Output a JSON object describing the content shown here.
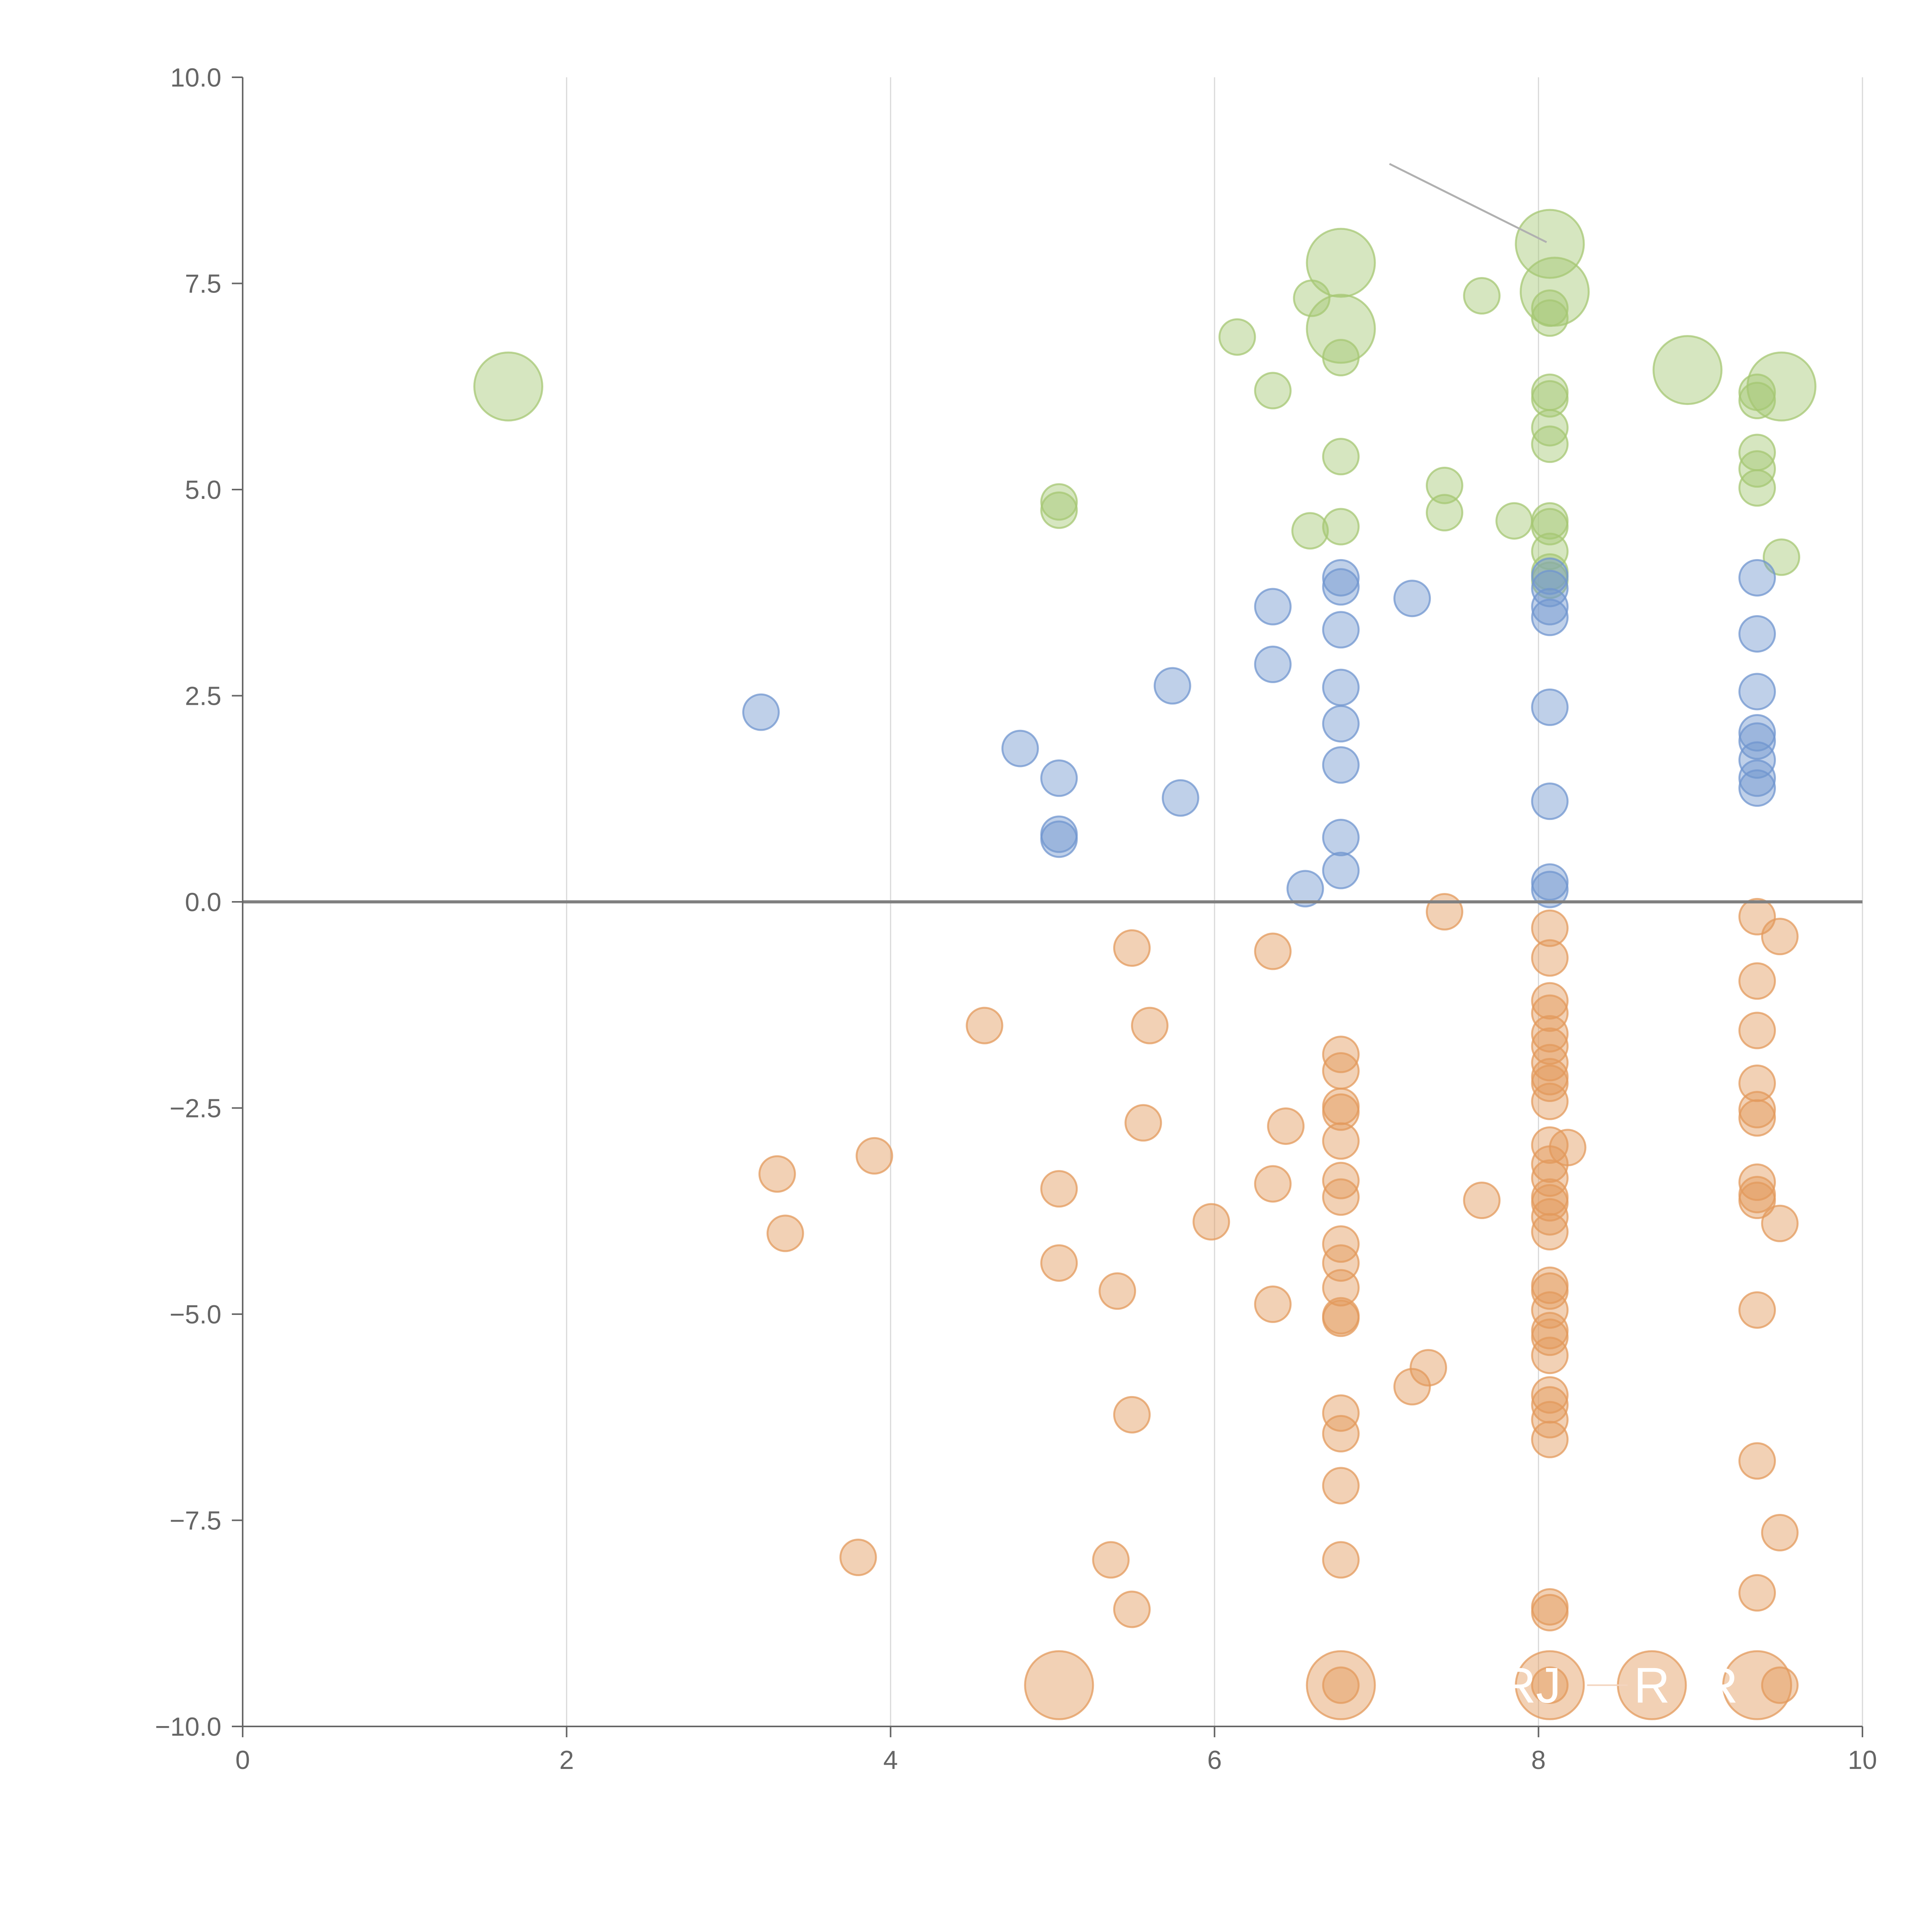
{
  "chart_data": {
    "type": "scatter",
    "title": "",
    "xlabel": "",
    "ylabel": "",
    "xlim": [
      0,
      10
    ],
    "ylim": [
      -10,
      10
    ],
    "grid": true,
    "x_ticks": [
      0,
      2,
      4,
      6,
      8,
      10
    ],
    "x_tick_labels": [
      "0",
      "2",
      "4",
      "6",
      "8",
      "10"
    ],
    "y_ticks": [
      -10,
      -7.5,
      -5,
      -2.5,
      0,
      2.5,
      5,
      7.5,
      10
    ],
    "y_tick_labels": [
      "−10.0",
      "−7.5",
      "−5.0",
      "−2.5",
      "0.0",
      "2.5",
      "5.0",
      "7.5",
      "10.0"
    ],
    "colors": {
      "green": "#a5c773",
      "blue": "#7096cf",
      "orange": "#e39a5c",
      "axis": "#666666",
      "grid": "#d9d9d9",
      "zero_line": "#808080",
      "annotation": "#ffffff",
      "leader": "#b0b0b0"
    },
    "series": [
      {
        "name": "green",
        "color": "#a5c773",
        "points": [
          [
            1.64,
            6.25,
            2
          ],
          [
            5.04,
            4.85,
            1
          ],
          [
            5.04,
            4.75,
            1
          ],
          [
            6.14,
            6.85,
            1
          ],
          [
            6.36,
            6.2,
            1
          ],
          [
            6.6,
            7.32,
            1
          ],
          [
            6.59,
            4.5,
            1
          ],
          [
            6.78,
            7.75,
            2
          ],
          [
            6.78,
            6.95,
            2
          ],
          [
            6.78,
            6.6,
            1
          ],
          [
            6.78,
            5.4,
            1
          ],
          [
            6.78,
            4.55,
            1
          ],
          [
            7.42,
            5.05,
            1
          ],
          [
            7.42,
            4.72,
            1
          ],
          [
            7.65,
            7.35,
            1
          ],
          [
            7.85,
            4.62,
            1
          ],
          [
            8.07,
            7.98,
            2
          ],
          [
            8.1,
            7.4,
            2
          ],
          [
            8.07,
            7.2,
            1
          ],
          [
            8.07,
            7.08,
            1
          ],
          [
            8.07,
            6.18,
            1
          ],
          [
            8.07,
            6.1,
            1
          ],
          [
            8.07,
            5.75,
            1
          ],
          [
            8.07,
            5.55,
            1
          ],
          [
            8.07,
            4.62,
            1
          ],
          [
            8.07,
            4.55,
            1
          ],
          [
            8.07,
            4.25,
            1
          ],
          [
            8.07,
            4.0,
            1
          ],
          [
            8.07,
            3.9,
            1
          ],
          [
            8.92,
            6.45,
            2
          ],
          [
            9.35,
            6.18,
            1
          ],
          [
            9.35,
            6.08,
            1
          ],
          [
            9.35,
            5.45,
            1
          ],
          [
            9.35,
            5.25,
            1
          ],
          [
            9.35,
            5.02,
            1
          ],
          [
            9.5,
            6.25,
            2
          ],
          [
            9.5,
            4.18,
            1
          ]
        ]
      },
      {
        "name": "blue",
        "color": "#7096cf",
        "points": [
          [
            3.2,
            2.3,
            1
          ],
          [
            4.8,
            1.86,
            1
          ],
          [
            5.04,
            1.5,
            1
          ],
          [
            5.04,
            0.82,
            1
          ],
          [
            5.04,
            0.76,
            1
          ],
          [
            5.74,
            2.62,
            1
          ],
          [
            5.79,
            1.26,
            1
          ],
          [
            6.36,
            3.58,
            1
          ],
          [
            6.36,
            2.88,
            1
          ],
          [
            6.56,
            0.16,
            1
          ],
          [
            6.78,
            3.93,
            1
          ],
          [
            6.78,
            3.82,
            1
          ],
          [
            6.78,
            3.3,
            1
          ],
          [
            6.78,
            2.6,
            1
          ],
          [
            6.78,
            2.16,
            1
          ],
          [
            6.78,
            1.66,
            1
          ],
          [
            6.78,
            0.78,
            1
          ],
          [
            6.78,
            0.38,
            1
          ],
          [
            7.22,
            3.68,
            1
          ],
          [
            8.07,
            3.95,
            1
          ],
          [
            8.07,
            3.8,
            1
          ],
          [
            8.07,
            3.58,
            1
          ],
          [
            8.07,
            3.45,
            1
          ],
          [
            8.07,
            2.36,
            1
          ],
          [
            8.07,
            1.22,
            1
          ],
          [
            8.07,
            0.24,
            1
          ],
          [
            8.07,
            0.15,
            1
          ],
          [
            9.35,
            3.93,
            1
          ],
          [
            9.35,
            3.25,
            1
          ],
          [
            9.35,
            2.55,
            1
          ],
          [
            9.35,
            2.05,
            1
          ],
          [
            9.35,
            1.95,
            1
          ],
          [
            9.35,
            1.72,
            1
          ],
          [
            9.35,
            1.5,
            1
          ],
          [
            9.35,
            1.38,
            1
          ]
        ]
      },
      {
        "name": "orange",
        "color": "#e39a5c",
        "points": [
          [
            3.3,
            -3.3,
            1
          ],
          [
            3.35,
            -4.02,
            1
          ],
          [
            3.8,
            -7.95,
            1
          ],
          [
            3.9,
            -3.08,
            1
          ],
          [
            4.58,
            -1.5,
            1
          ],
          [
            5.04,
            -3.48,
            1
          ],
          [
            5.04,
            -4.38,
            1
          ],
          [
            5.04,
            -9.5,
            2
          ],
          [
            5.36,
            -7.98,
            1
          ],
          [
            5.4,
            -4.72,
            1
          ],
          [
            5.49,
            -0.56,
            1
          ],
          [
            5.49,
            -6.22,
            1
          ],
          [
            5.49,
            -8.58,
            1
          ],
          [
            5.56,
            -2.68,
            1
          ],
          [
            5.6,
            -1.5,
            1
          ],
          [
            5.98,
            -3.88,
            1
          ],
          [
            6.36,
            -0.6,
            1
          ],
          [
            6.36,
            -3.42,
            1
          ],
          [
            6.36,
            -4.88,
            1
          ],
          [
            6.44,
            -2.72,
            1
          ],
          [
            6.78,
            -1.85,
            1
          ],
          [
            6.78,
            -2.05,
            1
          ],
          [
            6.78,
            -2.48,
            1
          ],
          [
            6.78,
            -2.55,
            1
          ],
          [
            6.78,
            -2.9,
            1
          ],
          [
            6.78,
            -3.38,
            1
          ],
          [
            6.78,
            -3.58,
            1
          ],
          [
            6.78,
            -4.15,
            1
          ],
          [
            6.78,
            -4.38,
            1
          ],
          [
            6.78,
            -4.68,
            1
          ],
          [
            6.78,
            -5.02,
            1
          ],
          [
            6.78,
            -5.05,
            1
          ],
          [
            6.78,
            -6.2,
            1
          ],
          [
            6.78,
            -6.45,
            1
          ],
          [
            6.78,
            -7.08,
            1
          ],
          [
            6.78,
            -7.98,
            1
          ],
          [
            6.78,
            -9.5,
            2
          ],
          [
            6.78,
            -9.5,
            1
          ],
          [
            7.22,
            -5.88,
            1
          ],
          [
            7.32,
            -5.65,
            1
          ],
          [
            7.42,
            -0.12,
            1
          ],
          [
            7.65,
            -3.62,
            1
          ],
          [
            8.07,
            -0.32,
            1
          ],
          [
            8.07,
            -0.68,
            1
          ],
          [
            8.07,
            -1.2,
            1
          ],
          [
            8.07,
            -1.35,
            1
          ],
          [
            8.07,
            -1.6,
            1
          ],
          [
            8.07,
            -1.75,
            1
          ],
          [
            8.07,
            -1.95,
            1
          ],
          [
            8.07,
            -2.12,
            1
          ],
          [
            8.07,
            -2.2,
            1
          ],
          [
            8.07,
            -2.42,
            1
          ],
          [
            8.07,
            -2.95,
            1
          ],
          [
            8.07,
            -3.18,
            1
          ],
          [
            8.07,
            -3.35,
            1
          ],
          [
            8.07,
            -3.58,
            1
          ],
          [
            8.07,
            -3.65,
            1
          ],
          [
            8.07,
            -3.82,
            1
          ],
          [
            8.07,
            -4.0,
            1
          ],
          [
            8.07,
            -4.65,
            1
          ],
          [
            8.07,
            -4.72,
            1
          ],
          [
            8.07,
            -4.95,
            1
          ],
          [
            8.07,
            -5.2,
            1
          ],
          [
            8.07,
            -5.28,
            1
          ],
          [
            8.07,
            -5.5,
            1
          ],
          [
            8.07,
            -5.98,
            1
          ],
          [
            8.07,
            -6.1,
            1
          ],
          [
            8.07,
            -6.28,
            1
          ],
          [
            8.07,
            -6.52,
            1
          ],
          [
            8.07,
            -8.55,
            1
          ],
          [
            8.07,
            -8.62,
            1
          ],
          [
            8.07,
            -9.5,
            2
          ],
          [
            8.07,
            -9.5,
            1
          ],
          [
            8.18,
            -2.98,
            1
          ],
          [
            8.7,
            -9.5,
            2
          ],
          [
            9.35,
            -0.18,
            1
          ],
          [
            9.35,
            -0.96,
            1
          ],
          [
            9.35,
            -1.56,
            1
          ],
          [
            9.35,
            -2.2,
            1
          ],
          [
            9.35,
            -2.52,
            1
          ],
          [
            9.35,
            -2.62,
            1
          ],
          [
            9.35,
            -3.4,
            1
          ],
          [
            9.35,
            -3.55,
            1
          ],
          [
            9.35,
            -3.62,
            1
          ],
          [
            9.35,
            -4.95,
            1
          ],
          [
            9.35,
            -6.78,
            1
          ],
          [
            9.35,
            -8.38,
            1
          ],
          [
            9.35,
            -9.5,
            2
          ],
          [
            9.49,
            -0.42,
            1
          ],
          [
            9.49,
            -3.9,
            1
          ],
          [
            9.49,
            -7.65,
            1
          ],
          [
            9.49,
            -9.5,
            1
          ]
        ]
      }
    ],
    "annotations": [
      {
        "text": "RJ",
        "x": 7.95,
        "y": -9.5
      },
      {
        "text": "R",
        "x": 8.7,
        "y": -9.5
      },
      {
        "text": "R",
        "x": 9.12,
        "y": -9.5
      }
    ]
  }
}
